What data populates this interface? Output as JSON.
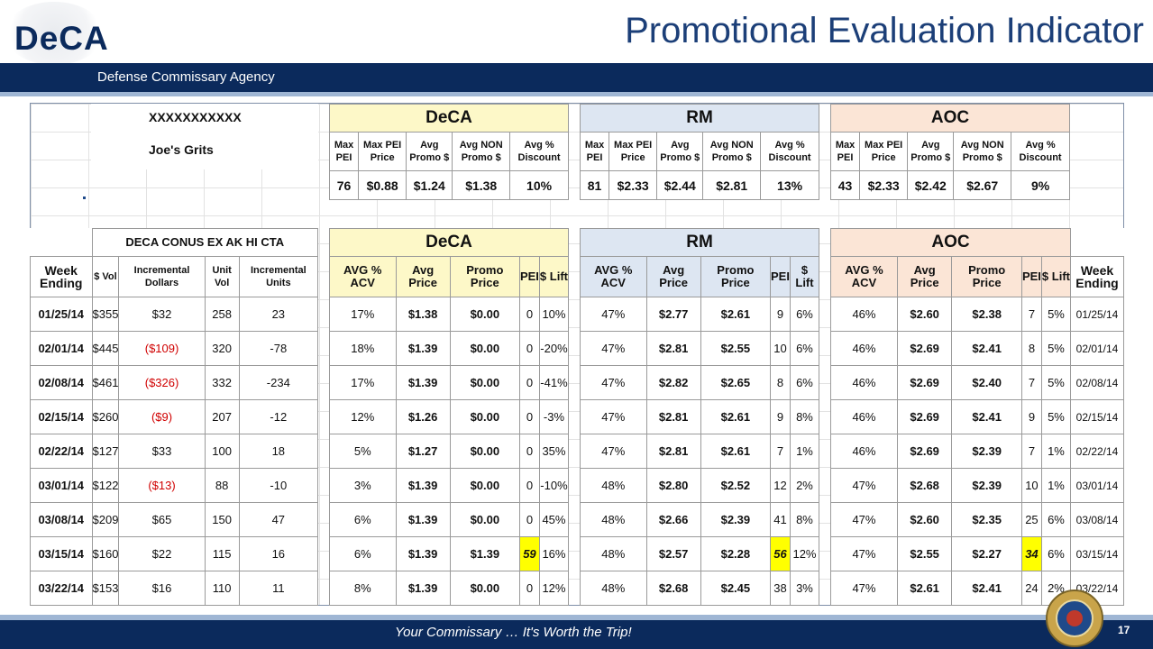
{
  "header": {
    "logo": "DeCA",
    "title": "Promotional Evaluation Indicator",
    "agency": "Defense Commissary Agency"
  },
  "footer": {
    "slogan": "Your Commissary … It's Worth the Trip!",
    "page": "17"
  },
  "summary": {
    "product_code": "XXXXXXXXXXX",
    "product_name": "Joe's Grits",
    "groups": [
      "DeCA",
      "RM",
      "AOC"
    ],
    "metrics": [
      "Max PEI",
      "Max PEI Price",
      "Avg Promo $",
      "Avg NON Promo $",
      "Avg % Discount"
    ],
    "values": [
      [
        "76",
        "$0.88",
        "$1.24",
        "$1.38",
        "10%"
      ],
      [
        "81",
        "$2.33",
        "$2.44",
        "$2.81",
        "13%"
      ],
      [
        "43",
        "$2.33",
        "$2.42",
        "$2.67",
        "9%"
      ]
    ]
  },
  "weekly": {
    "left_title": "DECA CONUS EX AK HI CTA",
    "week_label": "Week Ending",
    "left_cols": [
      "$ Vol",
      "Incremental Dollars",
      "Unit Vol",
      "Incremental Units"
    ],
    "group_cols": [
      "AVG % ACV",
      "Avg Price",
      "Promo Price",
      "PEI",
      "$ Lift"
    ],
    "rows": [
      {
        "week": "01/25/14",
        "vol": "$355",
        "inc": "$32",
        "inc_neg": false,
        "unit": "258",
        "incu": "23",
        "deca": [
          "17%",
          "$1.38",
          "$0.00",
          "0",
          "10%"
        ],
        "rm": [
          "47%",
          "$2.77",
          "$2.61",
          "9",
          "6%"
        ],
        "aoc": [
          "46%",
          "$2.60",
          "$2.38",
          "7",
          "5%"
        ]
      },
      {
        "week": "02/01/14",
        "vol": "$445",
        "inc": "($109)",
        "inc_neg": true,
        "unit": "320",
        "incu": "-78",
        "deca": [
          "18%",
          "$1.39",
          "$0.00",
          "0",
          "-20%"
        ],
        "rm": [
          "47%",
          "$2.81",
          "$2.55",
          "10",
          "6%"
        ],
        "aoc": [
          "46%",
          "$2.69",
          "$2.41",
          "8",
          "5%"
        ]
      },
      {
        "week": "02/08/14",
        "vol": "$461",
        "inc": "($326)",
        "inc_neg": true,
        "unit": "332",
        "incu": "-234",
        "deca": [
          "17%",
          "$1.39",
          "$0.00",
          "0",
          "-41%"
        ],
        "rm": [
          "47%",
          "$2.82",
          "$2.65",
          "8",
          "6%"
        ],
        "aoc": [
          "46%",
          "$2.69",
          "$2.40",
          "7",
          "5%"
        ]
      },
      {
        "week": "02/15/14",
        "vol": "$260",
        "inc": "($9)",
        "inc_neg": true,
        "unit": "207",
        "incu": "-12",
        "deca": [
          "12%",
          "$1.26",
          "$0.00",
          "0",
          "-3%"
        ],
        "rm": [
          "47%",
          "$2.81",
          "$2.61",
          "9",
          "8%"
        ],
        "aoc": [
          "46%",
          "$2.69",
          "$2.41",
          "9",
          "5%"
        ]
      },
      {
        "week": "02/22/14",
        "vol": "$127",
        "inc": "$33",
        "inc_neg": false,
        "unit": "100",
        "incu": "18",
        "deca": [
          "5%",
          "$1.27",
          "$0.00",
          "0",
          "35%"
        ],
        "rm": [
          "47%",
          "$2.81",
          "$2.61",
          "7",
          "1%"
        ],
        "aoc": [
          "46%",
          "$2.69",
          "$2.39",
          "7",
          "1%"
        ]
      },
      {
        "week": "03/01/14",
        "vol": "$122",
        "inc": "($13)",
        "inc_neg": true,
        "unit": "88",
        "incu": "-10",
        "deca": [
          "3%",
          "$1.39",
          "$0.00",
          "0",
          "-10%"
        ],
        "rm": [
          "48%",
          "$2.80",
          "$2.52",
          "12",
          "2%"
        ],
        "aoc": [
          "47%",
          "$2.68",
          "$2.39",
          "10",
          "1%"
        ]
      },
      {
        "week": "03/08/14",
        "vol": "$209",
        "inc": "$65",
        "inc_neg": false,
        "unit": "150",
        "incu": "47",
        "deca": [
          "6%",
          "$1.39",
          "$0.00",
          "0",
          "45%"
        ],
        "rm": [
          "48%",
          "$2.66",
          "$2.39",
          "41",
          "8%"
        ],
        "aoc": [
          "47%",
          "$2.60",
          "$2.35",
          "25",
          "6%"
        ]
      },
      {
        "week": "03/15/14",
        "vol": "$160",
        "inc": "$22",
        "inc_neg": false,
        "unit": "115",
        "incu": "16",
        "deca": [
          "6%",
          "$1.39",
          "$1.39",
          "59",
          "16%"
        ],
        "rm": [
          "48%",
          "$2.57",
          "$2.28",
          "56",
          "12%"
        ],
        "aoc": [
          "47%",
          "$2.55",
          "$2.27",
          "34",
          "6%"
        ],
        "highlight": true
      },
      {
        "week": "03/22/14",
        "vol": "$153",
        "inc": "$16",
        "inc_neg": false,
        "unit": "110",
        "incu": "11",
        "deca": [
          "8%",
          "$1.39",
          "$0.00",
          "0",
          "12%"
        ],
        "rm": [
          "48%",
          "$2.68",
          "$2.45",
          "38",
          "3%"
        ],
        "aoc": [
          "47%",
          "$2.61",
          "$2.41",
          "24",
          "2%"
        ]
      }
    ]
  }
}
